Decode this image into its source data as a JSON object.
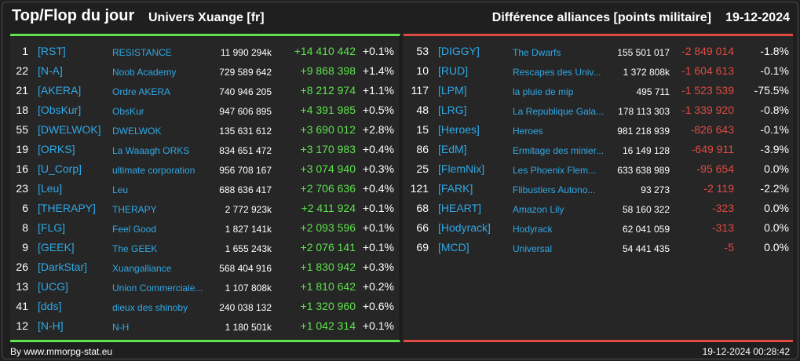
{
  "header": {
    "title": "Top/Flop du jour",
    "universe": "Univers Xuange [fr]",
    "metric": "Différence alliances [points militaire]",
    "date": "19-12-2024"
  },
  "colors": {
    "top": "#5ee24d",
    "flop": "#e04a42",
    "link": "#2fa8e6"
  },
  "top": [
    {
      "rank": "1",
      "tag": "[RST]",
      "name": "RESISTANCE",
      "points": "11 990 294k",
      "diff": "+14 410 442",
      "pct": "+0.1%"
    },
    {
      "rank": "22",
      "tag": "[N-A]",
      "name": "Noob Academy",
      "points": "729 589 642",
      "diff": "+9 868 398",
      "pct": "+1.4%"
    },
    {
      "rank": "21",
      "tag": "[AKERA]",
      "name": "Ordre AKERA",
      "points": "740 946 205",
      "diff": "+8 212 974",
      "pct": "+1.1%"
    },
    {
      "rank": "18",
      "tag": "[ObsKur]",
      "name": "ObsKur",
      "points": "947 606 895",
      "diff": "+4 391 985",
      "pct": "+0.5%"
    },
    {
      "rank": "55",
      "tag": "[DWELWOK]",
      "name": "DWELWOK",
      "points": "135 631 612",
      "diff": "+3 690 012",
      "pct": "+2.8%"
    },
    {
      "rank": "19",
      "tag": "[ORKS]",
      "name": "La Waaagh ORKS",
      "points": "834 651 472",
      "diff": "+3 170 983",
      "pct": "+0.4%"
    },
    {
      "rank": "16",
      "tag": "[U_Corp]",
      "name": "ultimate corporation",
      "points": "956 708 167",
      "diff": "+3 074 940",
      "pct": "+0.3%"
    },
    {
      "rank": "23",
      "tag": "[Leu]",
      "name": "Leu",
      "points": "688 636 417",
      "diff": "+2 706 636",
      "pct": "+0.4%"
    },
    {
      "rank": "6",
      "tag": "[THERAPY]",
      "name": "THERAPY",
      "points": "2 772 923k",
      "diff": "+2 411 924",
      "pct": "+0.1%"
    },
    {
      "rank": "8",
      "tag": "[FLG]",
      "name": "Feel Good",
      "points": "1 827 141k",
      "diff": "+2 093 596",
      "pct": "+0.1%"
    },
    {
      "rank": "9",
      "tag": "[GEEK]",
      "name": "The GEEK",
      "points": "1 655 243k",
      "diff": "+2 076 141",
      "pct": "+0.1%"
    },
    {
      "rank": "26",
      "tag": "[DarkStar]",
      "name": "Xuangalliance",
      "points": "568 404 916",
      "diff": "+1 830 942",
      "pct": "+0.3%"
    },
    {
      "rank": "13",
      "tag": "[UCG]",
      "name": "Union Commerciale...",
      "points": "1 107 808k",
      "diff": "+1 810 642",
      "pct": "+0.2%"
    },
    {
      "rank": "41",
      "tag": "[dds]",
      "name": "dieux des shinoby",
      "points": "240 038 132",
      "diff": "+1 320 960",
      "pct": "+0.6%"
    },
    {
      "rank": "12",
      "tag": "[N-H]",
      "name": "N-H",
      "points": "1 180 501k",
      "diff": "+1 042 314",
      "pct": "+0.1%"
    }
  ],
  "flop": [
    {
      "rank": "53",
      "tag": "[DIGGY]",
      "name": "The Dwarfs",
      "points": "155 501 017",
      "diff": "-2 849 014",
      "pct": "-1.8%"
    },
    {
      "rank": "10",
      "tag": "[RUD]",
      "name": "Rescapes des Univ...",
      "points": "1 372 808k",
      "diff": "-1 604 613",
      "pct": "-0.1%"
    },
    {
      "rank": "117",
      "tag": "[LPM]",
      "name": "la pluie de mip",
      "points": "495 711",
      "diff": "-1 523 539",
      "pct": "-75.5%"
    },
    {
      "rank": "48",
      "tag": "[LRG]",
      "name": "La Republique Gala...",
      "points": "178 113 303",
      "diff": "-1 339 920",
      "pct": "-0.8%"
    },
    {
      "rank": "15",
      "tag": "[Heroes]",
      "name": "Heroes",
      "points": "981 218 939",
      "diff": "-826 643",
      "pct": "-0.1%"
    },
    {
      "rank": "86",
      "tag": "[EdM]",
      "name": "Ermitage des minier...",
      "points": "16 149 128",
      "diff": "-649 911",
      "pct": "-3.9%"
    },
    {
      "rank": "25",
      "tag": "[FlemNix]",
      "name": "Les Phoenix Flem...",
      "points": "633 638 989",
      "diff": "-95 654",
      "pct": "0.0%"
    },
    {
      "rank": "121",
      "tag": "[FARK]",
      "name": "Flibustiers Autono...",
      "points": "93 273",
      "diff": "-2 119",
      "pct": "-2.2%"
    },
    {
      "rank": "68",
      "tag": "[HEART]",
      "name": "Amazon Lily",
      "points": "58 160 322",
      "diff": "-323",
      "pct": "0.0%"
    },
    {
      "rank": "66",
      "tag": "[Hodyrack]",
      "name": "Hodyrack",
      "points": "62 041 059",
      "diff": "-313",
      "pct": "0.0%"
    },
    {
      "rank": "69",
      "tag": "[MCD]",
      "name": "Universal",
      "points": "54 441 435",
      "diff": "-5",
      "pct": "0.0%"
    }
  ],
  "footer": {
    "source": "By www.mmorpg-stat.eu",
    "timestamp": "19-12-2024 00:28:42"
  }
}
